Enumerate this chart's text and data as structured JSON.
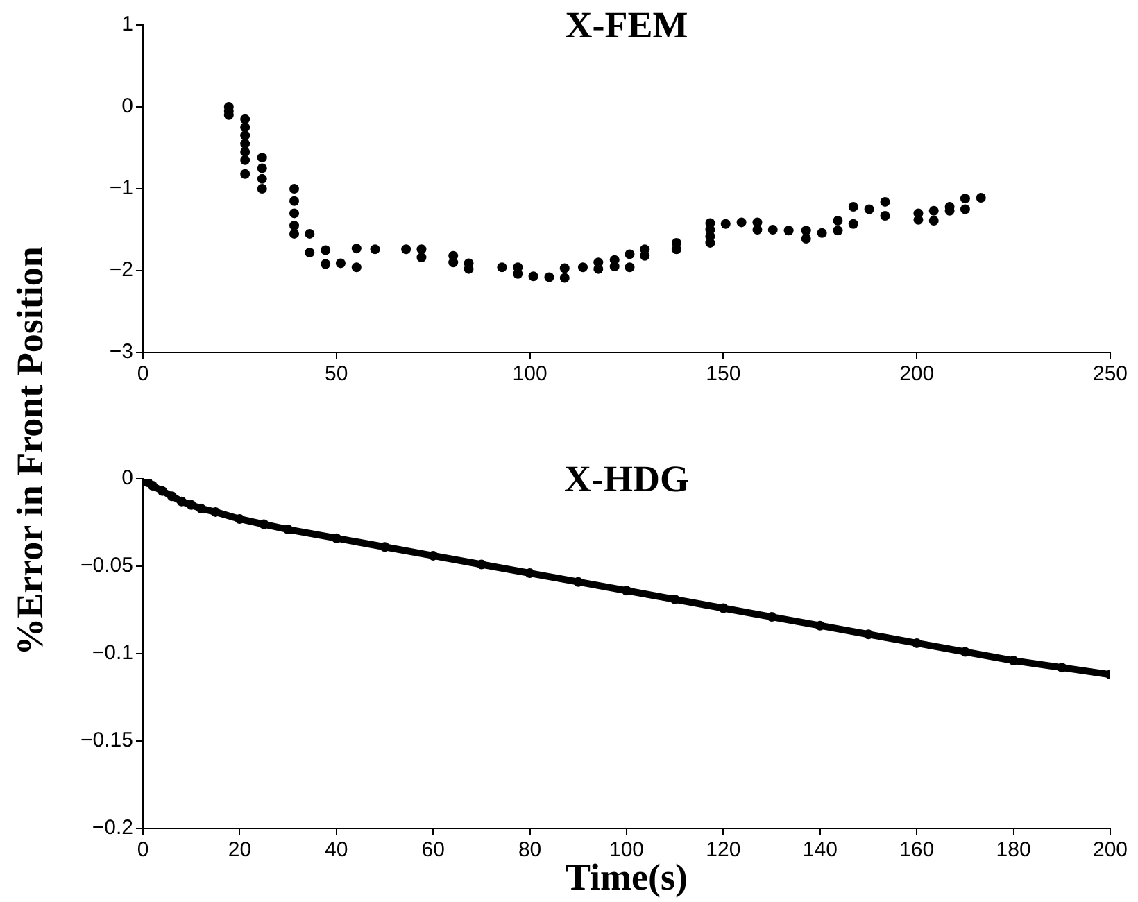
{
  "chart_data": [
    {
      "type": "scatter",
      "title": "X-FEM",
      "marker": "circle",
      "grid": false,
      "xlim": [
        0,
        250
      ],
      "xticks": [
        0,
        50,
        100,
        150,
        200,
        250
      ],
      "ylim": [
        -3,
        1
      ],
      "yticks": [
        -3,
        -2,
        -1,
        0,
        1
      ],
      "series": [
        {
          "color": "#000000",
          "x": [
            22.2,
            22.2,
            22.2,
            26.4,
            26.4,
            26.4,
            26.4,
            26.4,
            26.4,
            26.4,
            30.8,
            30.8,
            30.8,
            30.8,
            39.1,
            39.1,
            39.1,
            39.1,
            39.1,
            43.1,
            43.1,
            47.2,
            47.2,
            51.1,
            55.2,
            55.2,
            60,
            68,
            72,
            72,
            80.2,
            80.2,
            84.2,
            84.2,
            92.8,
            96.9,
            96.9,
            100.9,
            105,
            109,
            109,
            113.7,
            117.7,
            117.7,
            121.9,
            121.9,
            125.8,
            125.8,
            129.7,
            129.7,
            137.9,
            137.9,
            146.6,
            146.6,
            146.6,
            146.6,
            150.6,
            154.7,
            158.8,
            158.8,
            162.8,
            166.9,
            171.4,
            171.4,
            175.5,
            179.6,
            179.6,
            183.6,
            183.6,
            187.7,
            191.8,
            191.8,
            200.4,
            200.4,
            204.4,
            204.4,
            208.5,
            208.5,
            212.5,
            212.5,
            216.6
          ],
          "values": [
            0,
            -0.05,
            -0.1,
            -0.15,
            -0.25,
            -0.35,
            -0.45,
            -0.55,
            -0.65,
            -0.82,
            -0.62,
            -0.75,
            -0.88,
            -1.0,
            -1.0,
            -1.15,
            -1.3,
            -1.45,
            -1.55,
            -1.55,
            -1.78,
            -1.75,
            -1.92,
            -1.91,
            -1.73,
            -1.96,
            -1.74,
            -1.74,
            -1.74,
            -1.84,
            -1.82,
            -1.9,
            -1.91,
            -1.98,
            -1.96,
            -1.96,
            -2.04,
            -2.07,
            -2.08,
            -1.97,
            -2.09,
            -1.96,
            -1.9,
            -1.98,
            -1.87,
            -1.95,
            -1.8,
            -1.96,
            -1.74,
            -1.82,
            -1.66,
            -1.74,
            -1.42,
            -1.5,
            -1.58,
            -1.66,
            -1.43,
            -1.41,
            -1.41,
            -1.5,
            -1.5,
            -1.51,
            -1.51,
            -1.61,
            -1.54,
            -1.39,
            -1.51,
            -1.22,
            -1.43,
            -1.25,
            -1.16,
            -1.33,
            -1.3,
            -1.38,
            -1.27,
            -1.39,
            -1.22,
            -1.27,
            -1.12,
            -1.25,
            -1.11
          ]
        }
      ]
    },
    {
      "type": "line",
      "title": "X-HDG",
      "xlabel": "Time(s)",
      "ylabel": "%Error in Front Position",
      "marker": "circle",
      "grid": false,
      "xlim": [
        0,
        200
      ],
      "xticks": [
        0,
        20,
        40,
        60,
        80,
        100,
        120,
        140,
        160,
        180,
        200
      ],
      "ylim": [
        -0.2,
        0
      ],
      "yticks": [
        -0.2,
        -0.15,
        -0.1,
        -0.05,
        0
      ],
      "series": [
        {
          "color": "#000000",
          "x": [
            0,
            1,
            2,
            4,
            6,
            8,
            10,
            12,
            15,
            20,
            25,
            30,
            40,
            50,
            60,
            70,
            80,
            90,
            100,
            110,
            120,
            130,
            140,
            150,
            160,
            170,
            180,
            190,
            200
          ],
          "values": [
            0,
            -0.002,
            -0.004,
            -0.007,
            -0.01,
            -0.013,
            -0.015,
            -0.017,
            -0.019,
            -0.023,
            -0.026,
            -0.029,
            -0.034,
            -0.039,
            -0.044,
            -0.049,
            -0.054,
            -0.059,
            -0.064,
            -0.069,
            -0.074,
            -0.079,
            -0.084,
            -0.089,
            -0.094,
            -0.099,
            -0.104,
            -0.108,
            -0.112
          ]
        }
      ]
    }
  ]
}
